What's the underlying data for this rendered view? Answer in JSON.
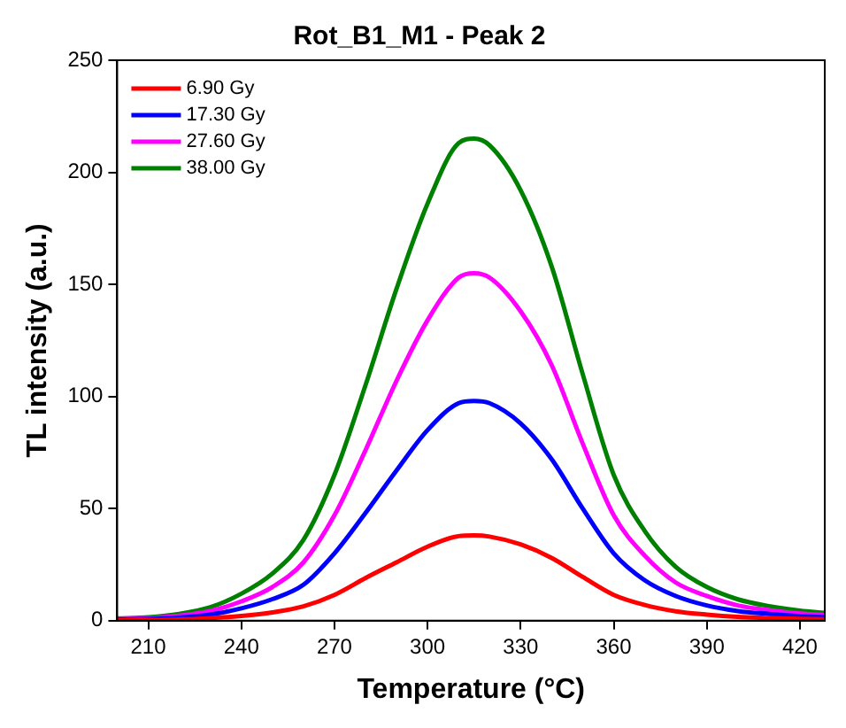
{
  "chart_data": {
    "type": "line",
    "title": "Rot_B1_M1 - Peak 2",
    "xlabel": "Temperature (°C)",
    "ylabel": "TL intensity (a.u.)",
    "x": [
      200,
      210,
      220,
      230,
      240,
      250,
      260,
      270,
      280,
      290,
      300,
      310,
      315,
      320,
      330,
      340,
      350,
      360,
      370,
      380,
      390,
      400,
      410,
      420,
      428
    ],
    "series": [
      {
        "name": "6.90 Gy",
        "color": "#ff0000",
        "values": [
          0.2,
          0.3,
          0.5,
          1.1,
          2.1,
          3.7,
          6.4,
          11.5,
          19,
          26,
          33,
          37.7,
          38,
          37.5,
          34,
          28,
          19.5,
          11.5,
          7,
          4.2,
          2.7,
          1.7,
          1.2,
          0.8,
          0.6
        ]
      },
      {
        "name": "17.30 Gy",
        "color": "#0000ff",
        "values": [
          0.5,
          0.7,
          1.4,
          2.7,
          5.5,
          9.6,
          16,
          30,
          48,
          67,
          85,
          97,
          98,
          97,
          88,
          72,
          50,
          30,
          18,
          11,
          6.8,
          4.3,
          3,
          2,
          1.6
        ]
      },
      {
        "name": "27.60 Gy",
        "color": "#ff00ff",
        "values": [
          0.7,
          1.1,
          2.2,
          4.3,
          8.6,
          15,
          26,
          47,
          76,
          107,
          134,
          153,
          155,
          153,
          138,
          114,
          79,
          47,
          29,
          17,
          11,
          6.8,
          4.7,
          3.2,
          2.5
        ]
      },
      {
        "name": "38.00 Gy",
        "color": "#008000",
        "values": [
          1,
          1.5,
          3,
          6,
          12,
          21,
          36,
          65,
          105,
          148,
          186,
          213,
          215,
          212,
          192,
          158,
          110,
          65,
          40,
          24,
          15,
          9.5,
          6.5,
          4.5,
          3.5
        ]
      }
    ],
    "xlim": [
      200,
      428
    ],
    "xticks": [
      210,
      240,
      270,
      300,
      330,
      360,
      390,
      420
    ],
    "ylim": [
      0,
      250
    ],
    "yticks": [
      0,
      50,
      100,
      150,
      200,
      250
    ],
    "grid": false,
    "legend": "top left",
    "marker": "none",
    "line_style": "solid"
  }
}
